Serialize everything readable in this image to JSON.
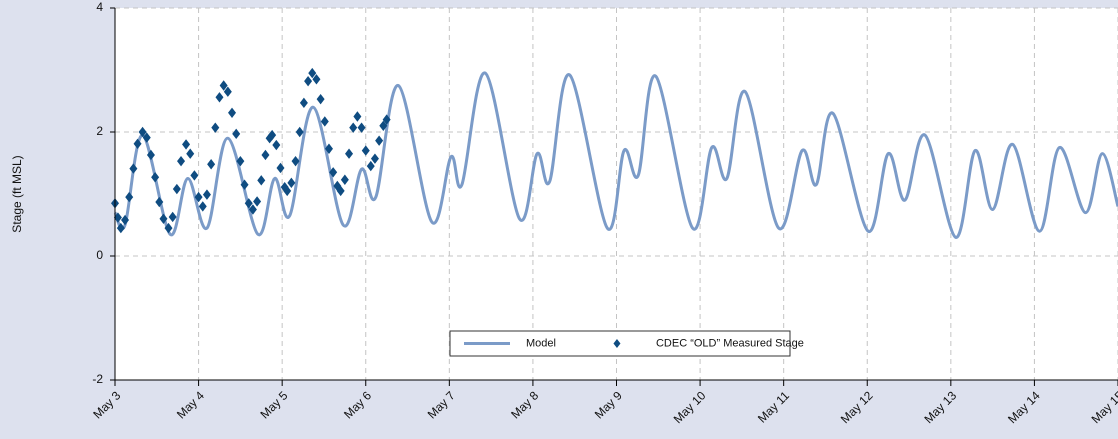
{
  "chart_data": {
    "type": "line",
    "ylabel": "Stage (ft MSL)",
    "xlim": [
      0,
      12
    ],
    "xticks": [
      {
        "value": 0,
        "label": "May 3"
      },
      {
        "value": 1,
        "label": "May 4"
      },
      {
        "value": 2,
        "label": "May 5"
      },
      {
        "value": 3,
        "label": "May 6"
      },
      {
        "value": 4,
        "label": "May 7"
      },
      {
        "value": 5,
        "label": "May 8"
      },
      {
        "value": 6,
        "label": "May 9"
      },
      {
        "value": 7,
        "label": "May 10"
      },
      {
        "value": 8,
        "label": "May 11"
      },
      {
        "value": 9,
        "label": "May 12"
      },
      {
        "value": 10,
        "label": "May 13"
      },
      {
        "value": 11,
        "label": "May 14"
      },
      {
        "value": 12,
        "label": "May 15"
      }
    ],
    "ylim": [
      -2,
      4
    ],
    "yticks": [
      -2,
      0,
      2,
      4
    ],
    "grid": true,
    "legend": "lower center",
    "series": [
      {
        "name": "Model",
        "color": "#7b9bc8",
        "mode": "line",
        "x": [
          0,
          0.12,
          0.33,
          0.66,
          0.87,
          1.1,
          1.35,
          1.71,
          1.91,
          2.09,
          2.37,
          2.73,
          2.95,
          3.12,
          3.39,
          3.79,
          4.02,
          4.15,
          4.43,
          4.84,
          5.05,
          5.2,
          5.44,
          5.89,
          6.09,
          6.26,
          6.47,
          6.91,
          7.14,
          7.32,
          7.54,
          7.94,
          8.22,
          8.39,
          8.59,
          9.01,
          9.25,
          9.45,
          9.69,
          10.06,
          10.29,
          10.5,
          10.74,
          11.06,
          11.3,
          11.61,
          11.81,
          12
        ],
        "values": [
          0.7,
          0.5,
          1.95,
          0.35,
          1.25,
          0.45,
          1.9,
          0.35,
          1.25,
          0.65,
          2.4,
          0.5,
          1.4,
          0.95,
          2.75,
          0.55,
          1.6,
          1.15,
          2.95,
          0.6,
          1.65,
          1.2,
          2.92,
          0.45,
          1.7,
          1.3,
          2.9,
          0.45,
          1.75,
          1.25,
          2.65,
          0.45,
          1.7,
          1.15,
          2.3,
          0.4,
          1.65,
          0.9,
          1.95,
          0.3,
          1.7,
          0.75,
          1.8,
          0.4,
          1.75,
          0.7,
          1.65,
          0.8
        ]
      },
      {
        "name": "CDEC “OLD” Measured Stage",
        "color": "#0f4c81",
        "mode": "markers",
        "x": [
          0,
          0.035,
          0.07,
          0.12,
          0.17,
          0.22,
          0.27,
          0.33,
          0.38,
          0.43,
          0.48,
          0.53,
          0.58,
          0.64,
          0.69,
          0.74,
          0.79,
          0.85,
          0.9,
          0.95,
          1.0,
          1.05,
          1.1,
          1.15,
          1.2,
          1.25,
          1.3,
          1.35,
          1.4,
          1.45,
          1.5,
          1.55,
          1.6,
          1.65,
          1.7,
          1.75,
          1.8,
          1.85,
          1.88,
          1.93,
          1.98,
          2.03,
          2.06,
          2.11,
          2.16,
          2.21,
          2.26,
          2.31,
          2.36,
          2.41,
          2.46,
          2.51,
          2.56,
          2.61,
          2.66,
          2.7,
          2.75,
          2.8,
          2.85,
          2.9,
          2.95,
          3.0,
          3.06,
          3.11,
          3.16,
          3.21,
          3.25
        ],
        "values": [
          0.85,
          0.62,
          0.45,
          0.58,
          0.95,
          1.41,
          1.81,
          2.0,
          1.91,
          1.63,
          1.27,
          0.87,
          0.6,
          0.45,
          0.63,
          1.08,
          1.53,
          1.8,
          1.65,
          1.3,
          0.95,
          0.8,
          0.99,
          1.48,
          2.07,
          2.56,
          2.75,
          2.65,
          2.31,
          1.97,
          1.53,
          1.15,
          0.85,
          0.75,
          0.88,
          1.22,
          1.63,
          1.9,
          1.95,
          1.79,
          1.42,
          1.11,
          1.05,
          1.18,
          1.53,
          2.0,
          2.47,
          2.82,
          2.95,
          2.85,
          2.53,
          2.17,
          1.73,
          1.35,
          1.13,
          1.05,
          1.23,
          1.65,
          2.07,
          2.25,
          2.07,
          1.7,
          1.45,
          1.57,
          1.86,
          2.1,
          2.2
        ]
      }
    ]
  }
}
